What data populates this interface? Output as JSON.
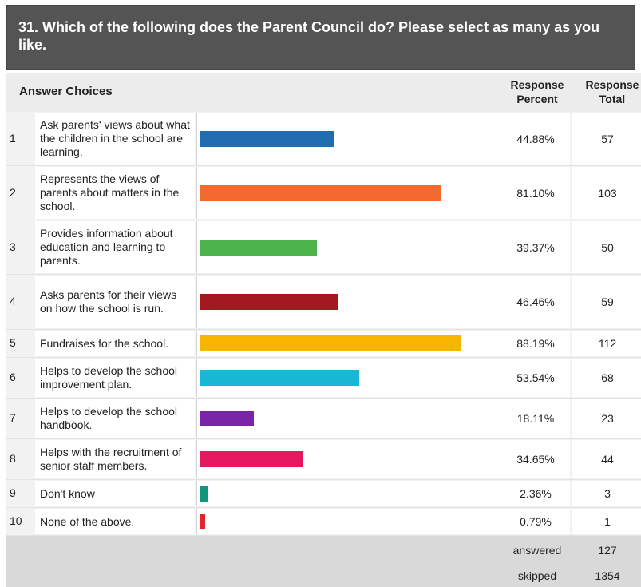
{
  "question": {
    "title": "31. Which of the following does the Parent Council do? Please select as many as you like."
  },
  "columns": {
    "answer_choices": "Answer Choices",
    "response_percent": "Response Percent",
    "response_total": "Response Total"
  },
  "chart_data": {
    "type": "bar",
    "orientation": "horizontal",
    "xlim": [
      0,
      100
    ],
    "categories": [
      "Ask parents' views about what the children in the school are learning.",
      "Represents the views of parents about matters in the school.",
      "Provides information about education and learning to parents.",
      "Asks parents for their views on how the school is run.",
      "Fundraises for the school.",
      "Helps to develop the school improvement plan.",
      "Helps to develop the school handbook.",
      "Helps with the recruitment of senior staff members.",
      "Don't know",
      "None of the above."
    ],
    "numbers": [
      "1",
      "2",
      "3",
      "4",
      "5",
      "6",
      "7",
      "8",
      "9",
      "10"
    ],
    "values": [
      44.88,
      81.1,
      39.37,
      46.46,
      88.19,
      53.54,
      18.11,
      34.65,
      2.36,
      0.79
    ],
    "percent_labels": [
      "44.88%",
      "81.10%",
      "39.37%",
      "46.46%",
      "88.19%",
      "53.54%",
      "18.11%",
      "34.65%",
      "2.36%",
      "0.79%"
    ],
    "totals": [
      "57",
      "103",
      "50",
      "59",
      "112",
      "68",
      "23",
      "44",
      "3",
      "1"
    ],
    "colors": [
      "#1f6db0",
      "#f26a2e",
      "#4db34d",
      "#a3191f",
      "#f7b500",
      "#19b6d6",
      "#7a24a8",
      "#e5175e",
      "#12957a",
      "#e3252b"
    ]
  },
  "summary": {
    "answered_label": "answered",
    "answered_value": "127",
    "skipped_label": "skipped",
    "skipped_value": "1354"
  }
}
